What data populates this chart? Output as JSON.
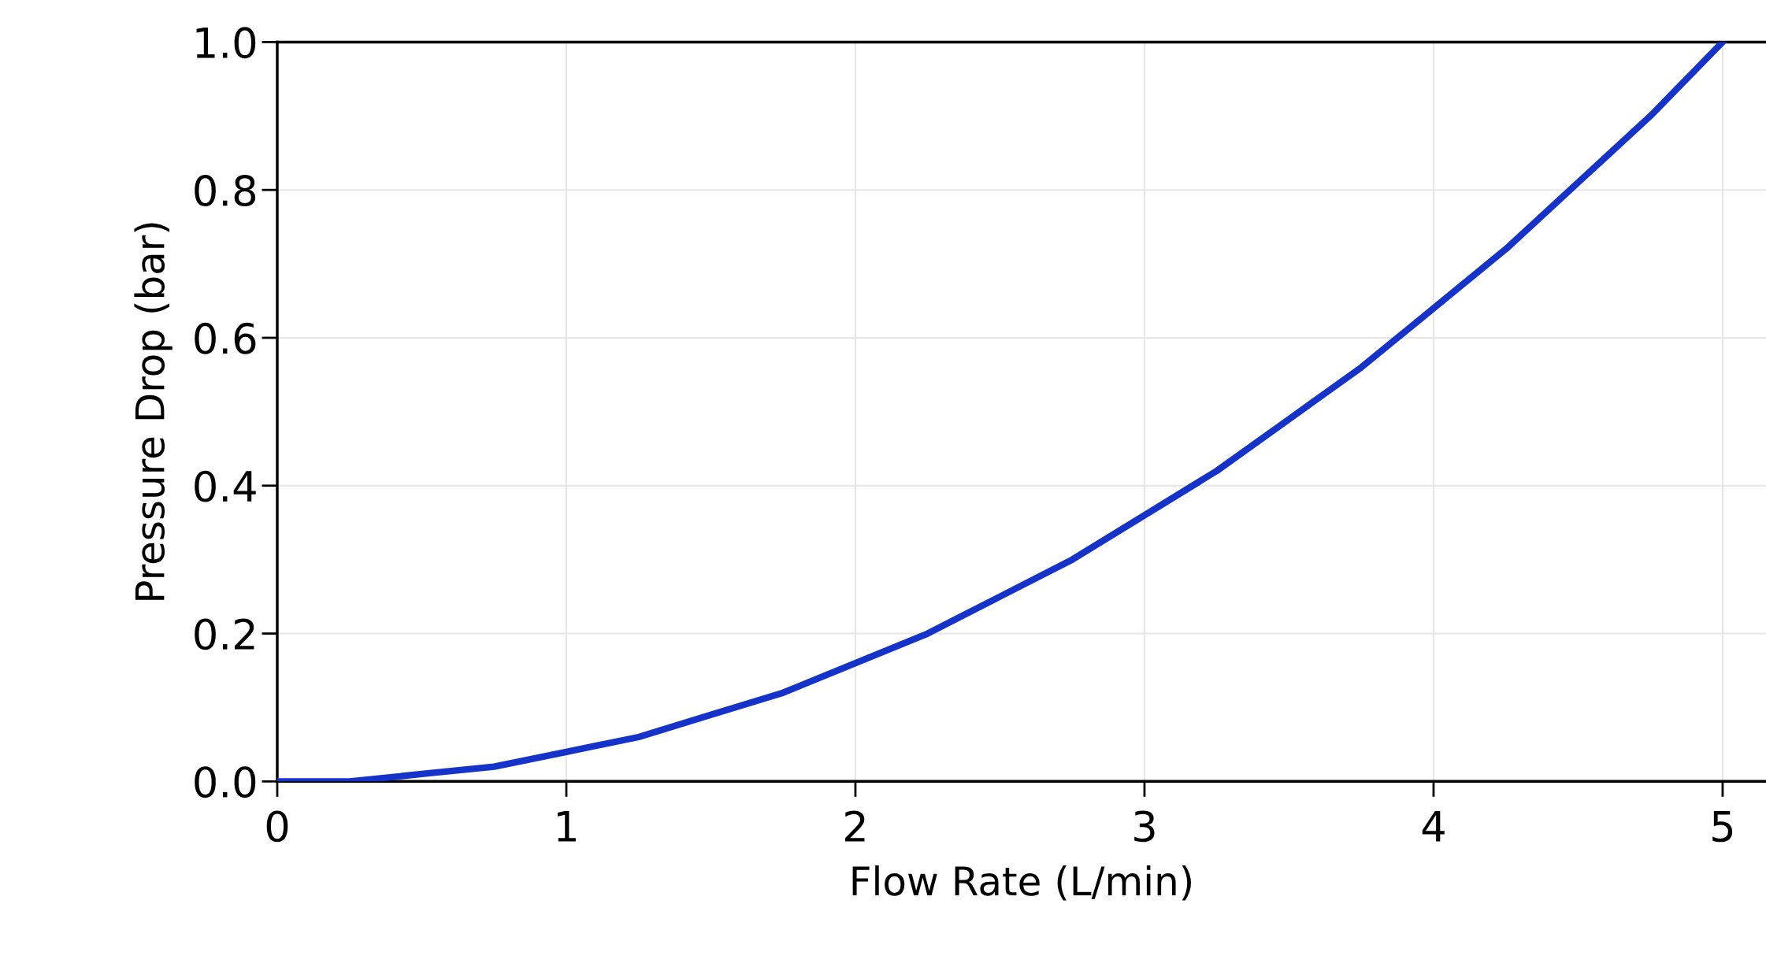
{
  "chart_data": {
    "type": "line",
    "xlabel": "Flow Rate (L/min)",
    "ylabel": "Pressure Drop (bar)",
    "x": [
      0,
      0.25,
      0.5,
      0.75,
      1,
      1.25,
      1.5,
      1.75,
      2,
      2.25,
      2.5,
      2.75,
      3,
      3.25,
      3.5,
      3.75,
      4,
      4.25,
      4.5,
      4.75,
      5
    ],
    "series": [
      {
        "color": "#1533c8",
        "values": [
          0,
          0.0,
          0.01,
          0.02,
          0.04,
          0.06,
          0.09,
          0.12,
          0.16,
          0.2,
          0.25,
          0.3,
          0.36,
          0.42,
          0.49,
          0.56,
          0.64,
          0.72,
          0.81,
          0.9,
          1.0
        ]
      }
    ],
    "xlim": [
      0,
      5.15
    ],
    "ylim": [
      0,
      1.0
    ],
    "xticks": [
      0,
      1,
      2,
      3,
      4,
      5
    ],
    "yticks": [
      {
        "value": 0,
        "label": "0.0"
      },
      {
        "value": 0.2,
        "label": "0.2"
      },
      {
        "value": 0.4,
        "label": "0.4"
      },
      {
        "value": 0.6,
        "label": "0.6"
      },
      {
        "value": 0.8,
        "label": "0.8"
      },
      {
        "value": 1.0,
        "label": "1.0"
      }
    ],
    "grid": true,
    "legend": false,
    "marker": "none",
    "line_style": "solid"
  }
}
